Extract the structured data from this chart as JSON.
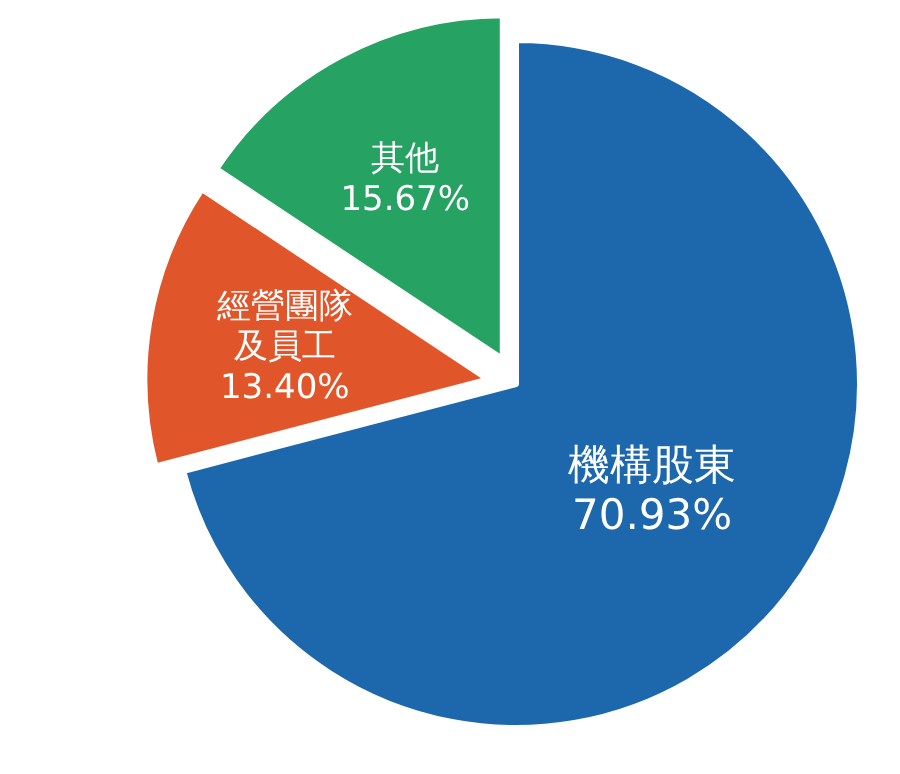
{
  "chart_data": {
    "type": "pie",
    "categories": [
      "機構股東",
      "經營團隊及員工",
      "其他"
    ],
    "values": [
      70.93,
      13.4,
      15.67
    ],
    "value_labels": [
      "70.93%",
      "13.40%",
      "15.67%"
    ],
    "colors": [
      "#1d68ad",
      "#e0562a",
      "#26a263"
    ]
  }
}
